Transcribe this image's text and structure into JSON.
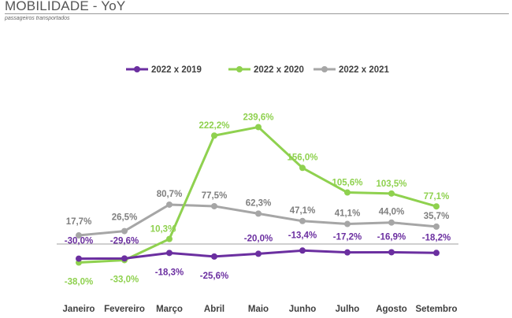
{
  "header": {
    "title": "MOBILIDADE - YoY",
    "subtitle": "passageiros transportados"
  },
  "chart_data": {
    "type": "line",
    "title": "",
    "categories": [
      "Janeiro",
      "Fevereiro",
      "Março",
      "Abril",
      "Maio",
      "Junho",
      "Julho",
      "Agosto",
      "Setembro"
    ],
    "legend_position": "top",
    "grid": false,
    "unit": "%",
    "series": [
      {
        "name": "2022 x 2019",
        "color": "#6b2fa0",
        "values": [
          -30.0,
          -29.6,
          -18.3,
          -25.6,
          -20.0,
          -13.4,
          -17.2,
          -16.9,
          -18.2
        ],
        "labels": [
          "-30,0%",
          "-29,6%",
          "-18,3%",
          "-25,6%",
          "-20,0%",
          "-13,4%",
          "-17,2%",
          "-16,9%",
          "-18,2%"
        ]
      },
      {
        "name": "2022 x 2020",
        "color": "#8fd14f",
        "values": [
          -38.0,
          -33.0,
          10.3,
          222.2,
          239.6,
          156.0,
          105.6,
          103.5,
          77.1
        ],
        "labels": [
          "-38,0%",
          "-33,0%",
          "10,3%",
          "222,2%",
          "239,6%",
          "156,0%",
          "105,6%",
          "103,5%",
          "77,1%"
        ]
      },
      {
        "name": "2022 x 2021",
        "color": "#a6a6a6",
        "values": [
          17.7,
          26.5,
          80.7,
          77.5,
          62.3,
          47.1,
          41.1,
          44.0,
          35.7
        ],
        "labels": [
          "17,7%",
          "26,5%",
          "80,7%",
          "77,5%",
          "62,3%",
          "47,1%",
          "41,1%",
          "44,0%",
          "35,7%"
        ]
      }
    ]
  }
}
